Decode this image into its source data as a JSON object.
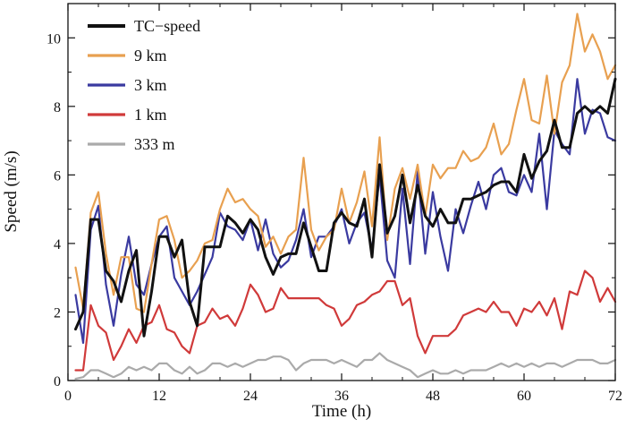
{
  "chart_data": {
    "type": "line",
    "title": "",
    "xlabel": "Time (h)",
    "ylabel": "Speed (m/s)",
    "xlim": [
      0,
      72
    ],
    "ylim": [
      0,
      11
    ],
    "xticks": [
      0,
      12,
      24,
      36,
      48,
      60,
      72
    ],
    "yticks": [
      0,
      2,
      4,
      6,
      8,
      10
    ],
    "legend_position": "top-left",
    "x": [
      1,
      2,
      3,
      4,
      5,
      6,
      7,
      8,
      9,
      10,
      11,
      12,
      13,
      14,
      15,
      16,
      17,
      18,
      19,
      20,
      21,
      22,
      23,
      24,
      25,
      26,
      27,
      28,
      29,
      30,
      31,
      32,
      33,
      34,
      35,
      36,
      37,
      38,
      39,
      40,
      41,
      42,
      43,
      44,
      45,
      46,
      47,
      48,
      49,
      50,
      51,
      52,
      53,
      54,
      55,
      56,
      57,
      58,
      59,
      60,
      61,
      62,
      63,
      64,
      65,
      66,
      67,
      68,
      69,
      70,
      71,
      72
    ],
    "series": [
      {
        "name": "TC−speed",
        "color": "#111111",
        "values": [
          1.5,
          2.0,
          4.7,
          4.7,
          3.2,
          2.9,
          2.3,
          3.2,
          3.8,
          1.3,
          2.6,
          4.2,
          4.2,
          3.6,
          4.1,
          2.3,
          1.6,
          3.9,
          3.9,
          3.9,
          4.8,
          4.6,
          4.3,
          4.7,
          4.4,
          3.6,
          3.1,
          3.6,
          3.7,
          3.7,
          4.6,
          3.9,
          3.2,
          3.2,
          4.6,
          4.9,
          4.6,
          4.5,
          5.3,
          3.6,
          6.3,
          4.3,
          4.8,
          6.0,
          4.6,
          5.7,
          4.8,
          4.5,
          5.0,
          4.6,
          4.6,
          5.3,
          5.3,
          5.4,
          5.5,
          5.7,
          5.8,
          5.8,
          5.5,
          6.6,
          5.9,
          6.4,
          6.7,
          7.6,
          6.8,
          6.8,
          7.8,
          8.0,
          7.8,
          8.0,
          7.8,
          8.8
        ]
      },
      {
        "name": "9 km",
        "color": "#e8a050",
        "values": [
          3.3,
          2.1,
          4.9,
          5.5,
          3.7,
          2.5,
          3.6,
          3.6,
          2.1,
          2.0,
          3.4,
          4.7,
          4.8,
          4.1,
          3.0,
          3.2,
          3.5,
          4.0,
          4.1,
          5.0,
          5.6,
          5.2,
          5.3,
          5.0,
          4.8,
          3.9,
          4.2,
          3.7,
          4.2,
          4.4,
          6.5,
          4.4,
          3.8,
          4.2,
          4.4,
          5.6,
          4.6,
          5.2,
          6.1,
          4.5,
          7.1,
          4.1,
          5.6,
          6.2,
          5.3,
          6.3,
          4.8,
          6.3,
          5.9,
          6.2,
          6.2,
          6.7,
          6.4,
          6.5,
          6.8,
          7.5,
          6.6,
          6.9,
          7.9,
          8.8,
          7.6,
          7.5,
          8.9,
          7.2,
          8.7,
          9.2,
          10.7,
          9.6,
          10.1,
          9.6,
          8.8,
          9.2
        ]
      },
      {
        "name": "3 km",
        "color": "#3a3aa0",
        "values": [
          2.5,
          1.1,
          4.4,
          5.1,
          2.8,
          1.6,
          3.1,
          4.2,
          2.8,
          2.5,
          3.4,
          4.2,
          4.5,
          3.0,
          2.6,
          2.2,
          2.6,
          3.1,
          3.6,
          4.9,
          4.5,
          4.4,
          4.1,
          4.7,
          3.8,
          4.7,
          3.7,
          3.3,
          3.5,
          4.1,
          5.0,
          3.6,
          4.2,
          4.2,
          4.5,
          5.0,
          4.0,
          4.6,
          4.9,
          3.8,
          6.0,
          3.5,
          3.0,
          5.6,
          3.4,
          6.1,
          3.7,
          5.5,
          4.2,
          3.2,
          5.0,
          4.3,
          5.1,
          5.8,
          5.0,
          6.0,
          6.2,
          5.5,
          5.4,
          6.0,
          5.5,
          7.2,
          5.0,
          7.3,
          6.9,
          6.6,
          8.8,
          7.2,
          7.9,
          7.8,
          7.1,
          7.0
        ]
      },
      {
        "name": "1 km",
        "color": "#d03a3a",
        "values": [
          0.3,
          0.3,
          2.2,
          1.6,
          1.4,
          0.6,
          1.0,
          1.5,
          1.1,
          1.6,
          1.7,
          2.2,
          1.5,
          1.4,
          1.0,
          0.8,
          1.6,
          1.7,
          2.1,
          1.8,
          1.9,
          1.6,
          2.1,
          2.8,
          2.5,
          2.0,
          2.1,
          2.7,
          2.4,
          2.4,
          2.4,
          2.4,
          2.4,
          2.2,
          2.1,
          1.6,
          1.8,
          2.2,
          2.3,
          2.5,
          2.6,
          2.9,
          2.9,
          2.2,
          2.4,
          1.3,
          0.8,
          1.3,
          1.3,
          1.3,
          1.5,
          1.9,
          2.0,
          2.1,
          2.0,
          2.3,
          2.0,
          2.0,
          1.6,
          2.1,
          2.0,
          2.3,
          1.9,
          2.4,
          1.5,
          2.6,
          2.5,
          3.2,
          3.0,
          2.3,
          2.7,
          2.3
        ]
      },
      {
        "name": "333 m",
        "color": "#aaaaaa",
        "values": [
          0.05,
          0.1,
          0.3,
          0.3,
          0.2,
          0.1,
          0.2,
          0.4,
          0.3,
          0.4,
          0.3,
          0.5,
          0.5,
          0.3,
          0.2,
          0.4,
          0.2,
          0.3,
          0.5,
          0.5,
          0.4,
          0.5,
          0.4,
          0.5,
          0.6,
          0.6,
          0.7,
          0.7,
          0.6,
          0.3,
          0.5,
          0.6,
          0.6,
          0.6,
          0.5,
          0.6,
          0.5,
          0.4,
          0.6,
          0.6,
          0.8,
          0.6,
          0.5,
          0.4,
          0.3,
          0.1,
          0.2,
          0.3,
          0.2,
          0.2,
          0.3,
          0.2,
          0.3,
          0.3,
          0.3,
          0.4,
          0.5,
          0.4,
          0.5,
          0.4,
          0.5,
          0.4,
          0.5,
          0.5,
          0.4,
          0.5,
          0.6,
          0.6,
          0.6,
          0.5,
          0.5,
          0.6
        ]
      }
    ]
  }
}
